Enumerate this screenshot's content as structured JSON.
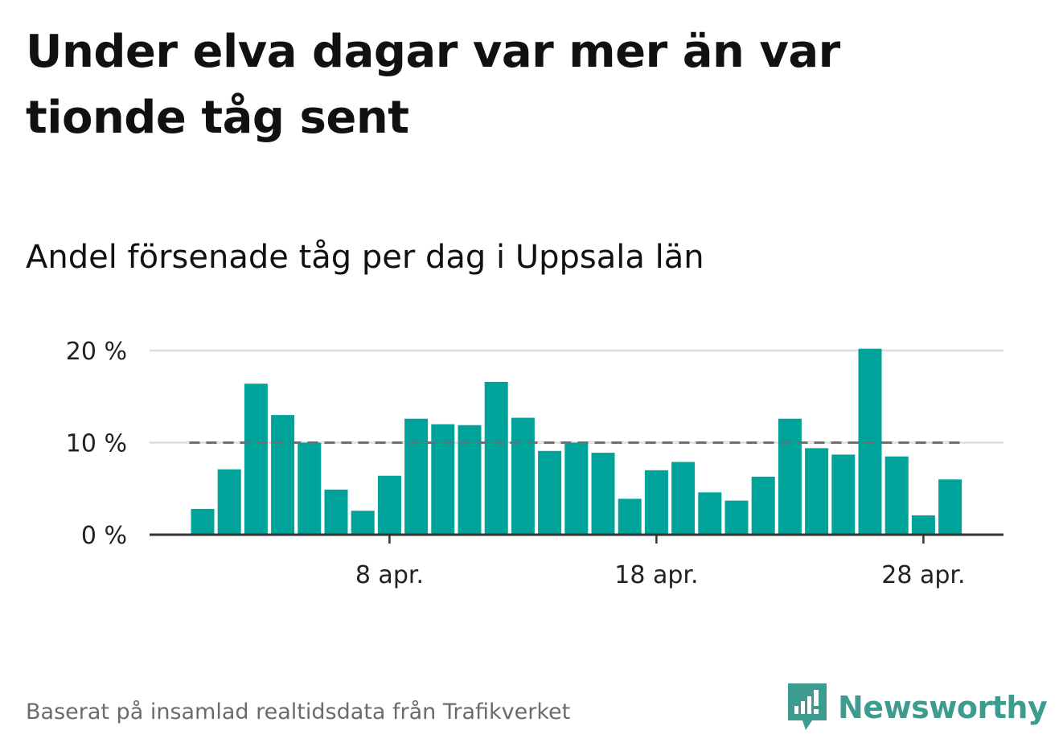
{
  "header": {
    "title": "Under elva dagar var mer än var tionde tåg sent",
    "subtitle": "Andel försenade tåg per dag i Uppsala län"
  },
  "footer": {
    "source": "Baserat på insamlad realtidsdata från Trafikverket",
    "brand": "Newsworthy"
  },
  "colors": {
    "bar": "#00a39a",
    "reference_line": "#6e6e73",
    "grid": "#dddddd",
    "axis": "#333333",
    "brand": "#3d9b8f"
  },
  "chart_data": {
    "type": "bar",
    "title": "Under elva dagar var mer än var tionde tåg sent",
    "subtitle": "Andel försenade tåg per dag i Uppsala län",
    "xlabel": "",
    "ylabel": "",
    "x": [
      1,
      2,
      3,
      4,
      5,
      6,
      7,
      8,
      9,
      10,
      11,
      12,
      13,
      14,
      15,
      16,
      17,
      18,
      19,
      20,
      21,
      22,
      23,
      24,
      25,
      26,
      27,
      28,
      29,
      30
    ],
    "values": [
      2.8,
      7.1,
      16.4,
      13.0,
      10.0,
      4.9,
      2.6,
      6.4,
      12.6,
      12.0,
      11.9,
      16.6,
      12.7,
      9.1,
      10.0,
      8.9,
      3.9,
      7.0,
      7.9,
      4.6,
      3.7,
      6.3,
      12.6,
      9.4,
      8.7,
      20.2,
      8.5,
      2.1,
      6.0,
      null
    ],
    "ylim": [
      0,
      20
    ],
    "yticks": [
      {
        "value": 0,
        "label": "0 %"
      },
      {
        "value": 10,
        "label": "10 %"
      },
      {
        "value": 20,
        "label": "20 %"
      }
    ],
    "xticks": [
      {
        "value": 8,
        "label": "8 apr."
      },
      {
        "value": 18,
        "label": "18 apr."
      },
      {
        "value": 28,
        "label": "28 apr."
      }
    ],
    "reference_line": {
      "value": 10,
      "style": "dashed"
    },
    "grid": true,
    "legend": "none"
  }
}
